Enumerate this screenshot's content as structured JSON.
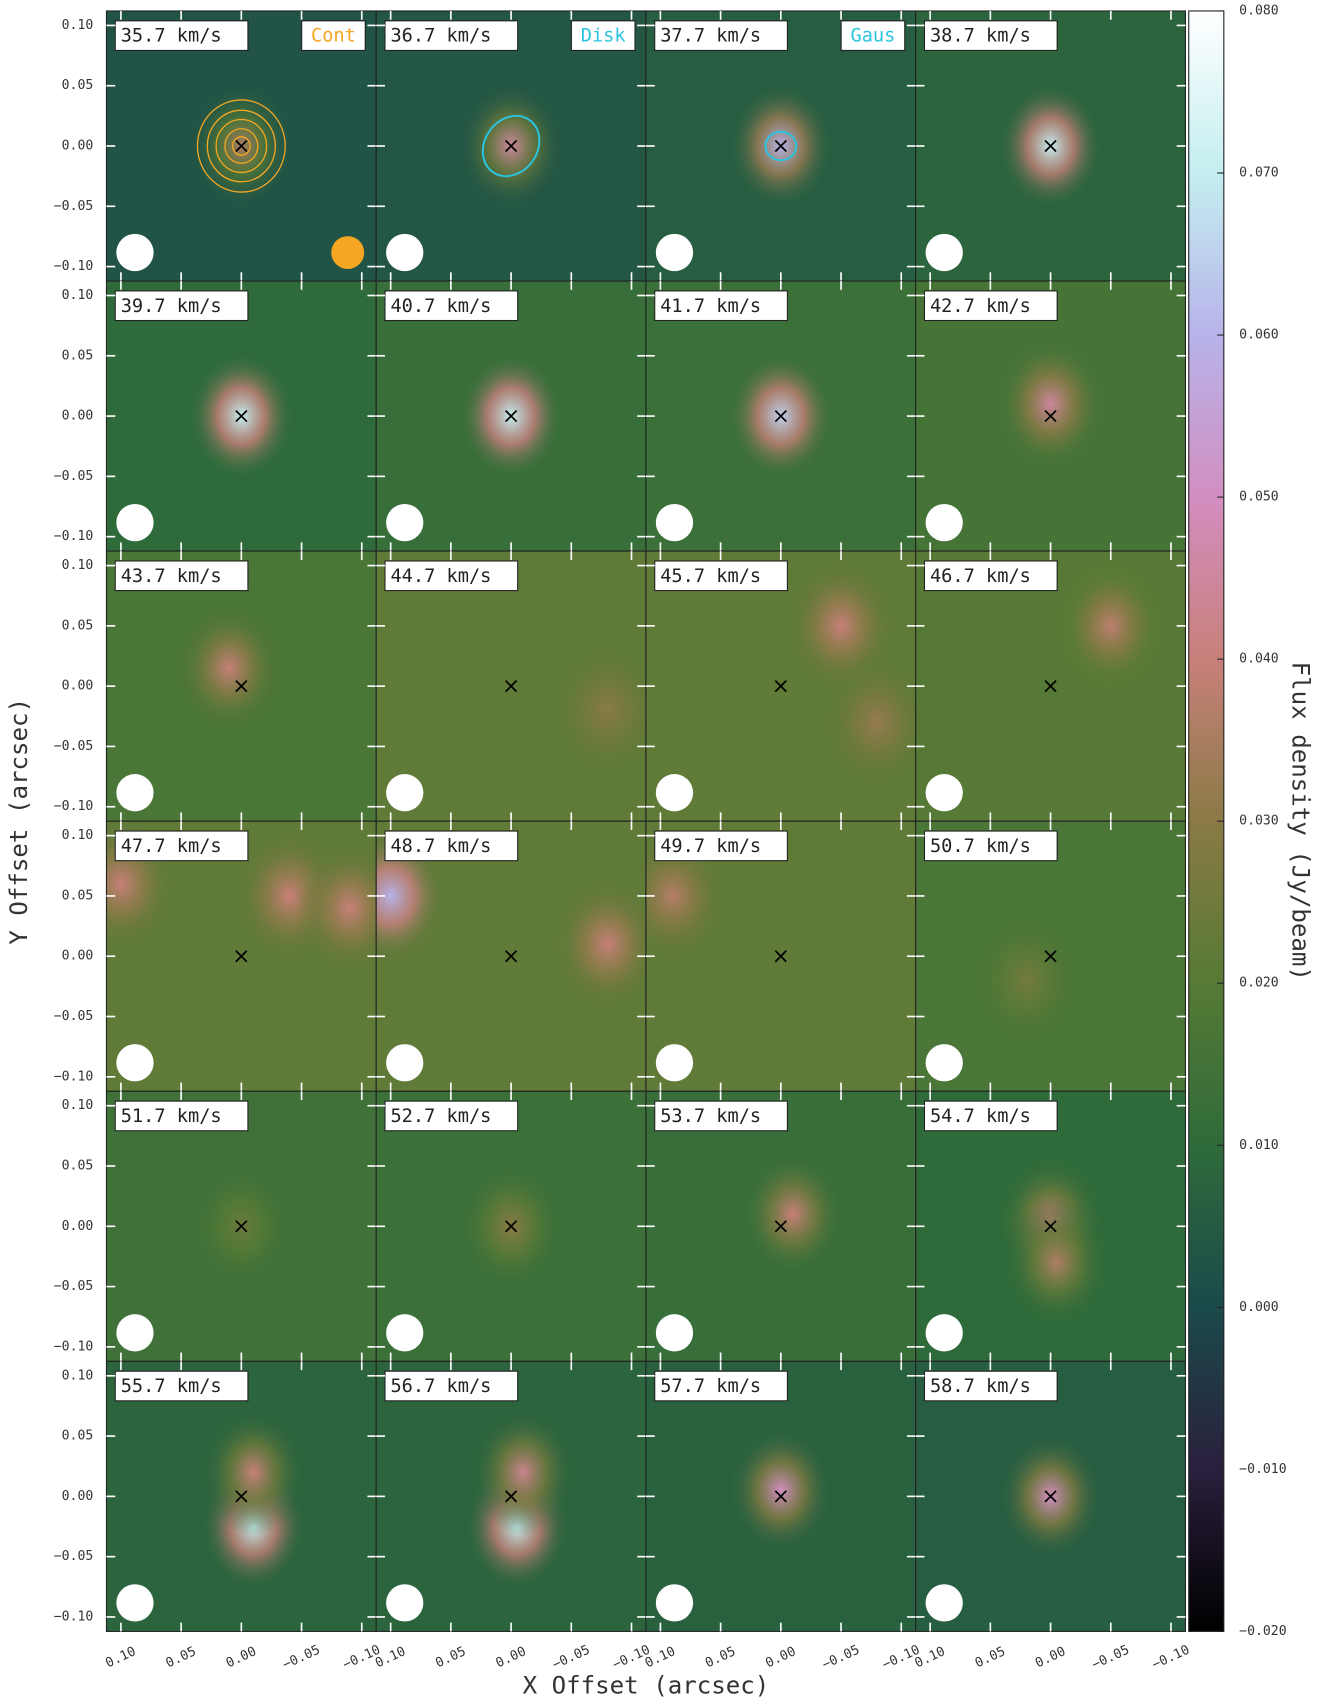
{
  "chart_data": {
    "type": "channel-map",
    "xlabel": "X Offset (arcsec)",
    "ylabel": "Y Offset (arcsec)",
    "colorbar_label": "Flux density (Jy/beam)",
    "xlim": [
      0.112,
      -0.112
    ],
    "ylim": [
      -0.112,
      0.112
    ],
    "xticks": [
      {
        "value": 0.1,
        "label": "0.10"
      },
      {
        "value": 0.05,
        "label": "0.05"
      },
      {
        "value": 0,
        "label": "0.00"
      },
      {
        "value": -0.05,
        "label": "−0.05"
      },
      {
        "value": -0.1,
        "label": "−0.10"
      }
    ],
    "yticks": [
      {
        "value": 0.1,
        "label": "0.10"
      },
      {
        "value": 0.05,
        "label": "0.05"
      },
      {
        "value": 0,
        "label": "0.00"
      },
      {
        "value": -0.05,
        "label": "−0.05"
      },
      {
        "value": -0.1,
        "label": "−0.10"
      }
    ],
    "clim": [
      -0.02,
      0.08
    ],
    "cticks": [
      {
        "value": 0.08,
        "label": "0.080"
      },
      {
        "value": 0.07,
        "label": "0.070"
      },
      {
        "value": 0.06,
        "label": "0.060"
      },
      {
        "value": 0.05,
        "label": "0.050"
      },
      {
        "value": 0.04,
        "label": "0.040"
      },
      {
        "value": 0.03,
        "label": "0.030"
      },
      {
        "value": 0.02,
        "label": "0.020"
      },
      {
        "value": 0.01,
        "label": "0.010"
      },
      {
        "value": 0,
        "label": "0.000"
      },
      {
        "value": -0.01,
        "label": "−0.010"
      },
      {
        "value": -0.02,
        "label": "−0.020"
      }
    ],
    "colormap": [
      "#000000",
      "#2a1f3d",
      "#1b4a4b",
      "#2f6b3a",
      "#567a35",
      "#8a7a45",
      "#c8807a",
      "#d28ec0",
      "#b7b3ea",
      "#c4eef0",
      "#ffffff"
    ],
    "legend": [
      {
        "name": "Cont",
        "color": "#f5a623"
      },
      {
        "name": "Disk",
        "color": "#2bc4e0"
      },
      {
        "name": "Gaus",
        "color": "#2bc4e0"
      }
    ],
    "panels": [
      {
        "label": "35.7 km/s",
        "background": 0.003,
        "peaks": [
          {
            "x": 0,
            "y": 0,
            "flux": 0.035
          }
        ]
      },
      {
        "label": "36.7 km/s",
        "background": 0.004,
        "peaks": [
          {
            "x": 0,
            "y": 0,
            "flux": 0.045
          }
        ]
      },
      {
        "label": "37.7 km/s",
        "background": 0.006,
        "peaks": [
          {
            "x": 0,
            "y": 0,
            "flux": 0.06
          }
        ]
      },
      {
        "label": "38.7 km/s",
        "background": 0.008,
        "peaks": [
          {
            "x": 0,
            "y": 0,
            "flux": 0.07
          }
        ]
      },
      {
        "label": "39.7 km/s",
        "background": 0.01,
        "peaks": [
          {
            "x": 0,
            "y": 0,
            "flux": 0.07
          }
        ]
      },
      {
        "label": "40.7 km/s",
        "background": 0.012,
        "peaks": [
          {
            "x": 0,
            "y": 0,
            "flux": 0.07
          }
        ]
      },
      {
        "label": "41.7 km/s",
        "background": 0.013,
        "peaks": [
          {
            "x": 0,
            "y": 0,
            "flux": 0.065
          }
        ]
      },
      {
        "label": "42.7 km/s",
        "background": 0.016,
        "peaks": [
          {
            "x": 0,
            "y": 0.01,
            "flux": 0.045
          }
        ]
      },
      {
        "label": "43.7 km/s",
        "background": 0.017,
        "peaks": [
          {
            "x": 0.01,
            "y": 0.015,
            "flux": 0.04
          }
        ]
      },
      {
        "label": "44.7 km/s",
        "background": 0.022,
        "peaks": [
          {
            "x": -0.08,
            "y": -0.02,
            "flux": 0.03
          }
        ]
      },
      {
        "label": "45.7 km/s",
        "background": 0.022,
        "peaks": [
          {
            "x": -0.05,
            "y": 0.05,
            "flux": 0.04
          },
          {
            "x": -0.08,
            "y": -0.03,
            "flux": 0.032
          }
        ]
      },
      {
        "label": "46.7 km/s",
        "background": 0.02,
        "peaks": [
          {
            "x": -0.05,
            "y": 0.05,
            "flux": 0.038
          }
        ]
      },
      {
        "label": "47.7 km/s",
        "background": 0.022,
        "peaks": [
          {
            "x": 0.1,
            "y": 0.06,
            "flux": 0.04
          },
          {
            "x": -0.04,
            "y": 0.05,
            "flux": 0.04
          },
          {
            "x": -0.09,
            "y": 0.04,
            "flux": 0.04
          }
        ]
      },
      {
        "label": "48.7 km/s",
        "background": 0.022,
        "peaks": [
          {
            "x": 0.1,
            "y": 0.05,
            "flux": 0.06
          },
          {
            "x": -0.08,
            "y": 0.01,
            "flux": 0.04
          }
        ]
      },
      {
        "label": "49.7 km/s",
        "background": 0.022,
        "peaks": [
          {
            "x": 0.09,
            "y": 0.05,
            "flux": 0.037
          }
        ]
      },
      {
        "label": "50.7 km/s",
        "background": 0.017,
        "peaks": [
          {
            "x": 0.02,
            "y": -0.02,
            "flux": 0.026
          }
        ]
      },
      {
        "label": "51.7 km/s",
        "background": 0.014,
        "peaks": [
          {
            "x": 0,
            "y": 0,
            "flux": 0.024
          }
        ]
      },
      {
        "label": "52.7 km/s",
        "background": 0.013,
        "peaks": [
          {
            "x": 0,
            "y": 0,
            "flux": 0.03
          }
        ]
      },
      {
        "label": "53.7 km/s",
        "background": 0.012,
        "peaks": [
          {
            "x": -0.01,
            "y": 0.01,
            "flux": 0.04
          }
        ]
      },
      {
        "label": "54.7 km/s",
        "background": 0.01,
        "peaks": [
          {
            "x": 0,
            "y": 0.005,
            "flux": 0.04
          },
          {
            "x": -0.005,
            "y": -0.03,
            "flux": 0.036
          }
        ]
      },
      {
        "label": "55.7 km/s",
        "background": 0.008,
        "peaks": [
          {
            "x": -0.01,
            "y": -0.025,
            "flux": 0.07
          },
          {
            "x": -0.01,
            "y": 0.02,
            "flux": 0.04
          }
        ]
      },
      {
        "label": "56.7 km/s",
        "background": 0.008,
        "peaks": [
          {
            "x": -0.005,
            "y": -0.025,
            "flux": 0.07
          },
          {
            "x": -0.01,
            "y": 0.02,
            "flux": 0.043
          }
        ]
      },
      {
        "label": "57.7 km/s",
        "background": 0.007,
        "peaks": [
          {
            "x": 0,
            "y": 0.005,
            "flux": 0.05
          }
        ]
      },
      {
        "label": "58.7 km/s",
        "background": 0.006,
        "peaks": [
          {
            "x": 0,
            "y": 0,
            "flux": 0.05
          }
        ]
      }
    ]
  }
}
